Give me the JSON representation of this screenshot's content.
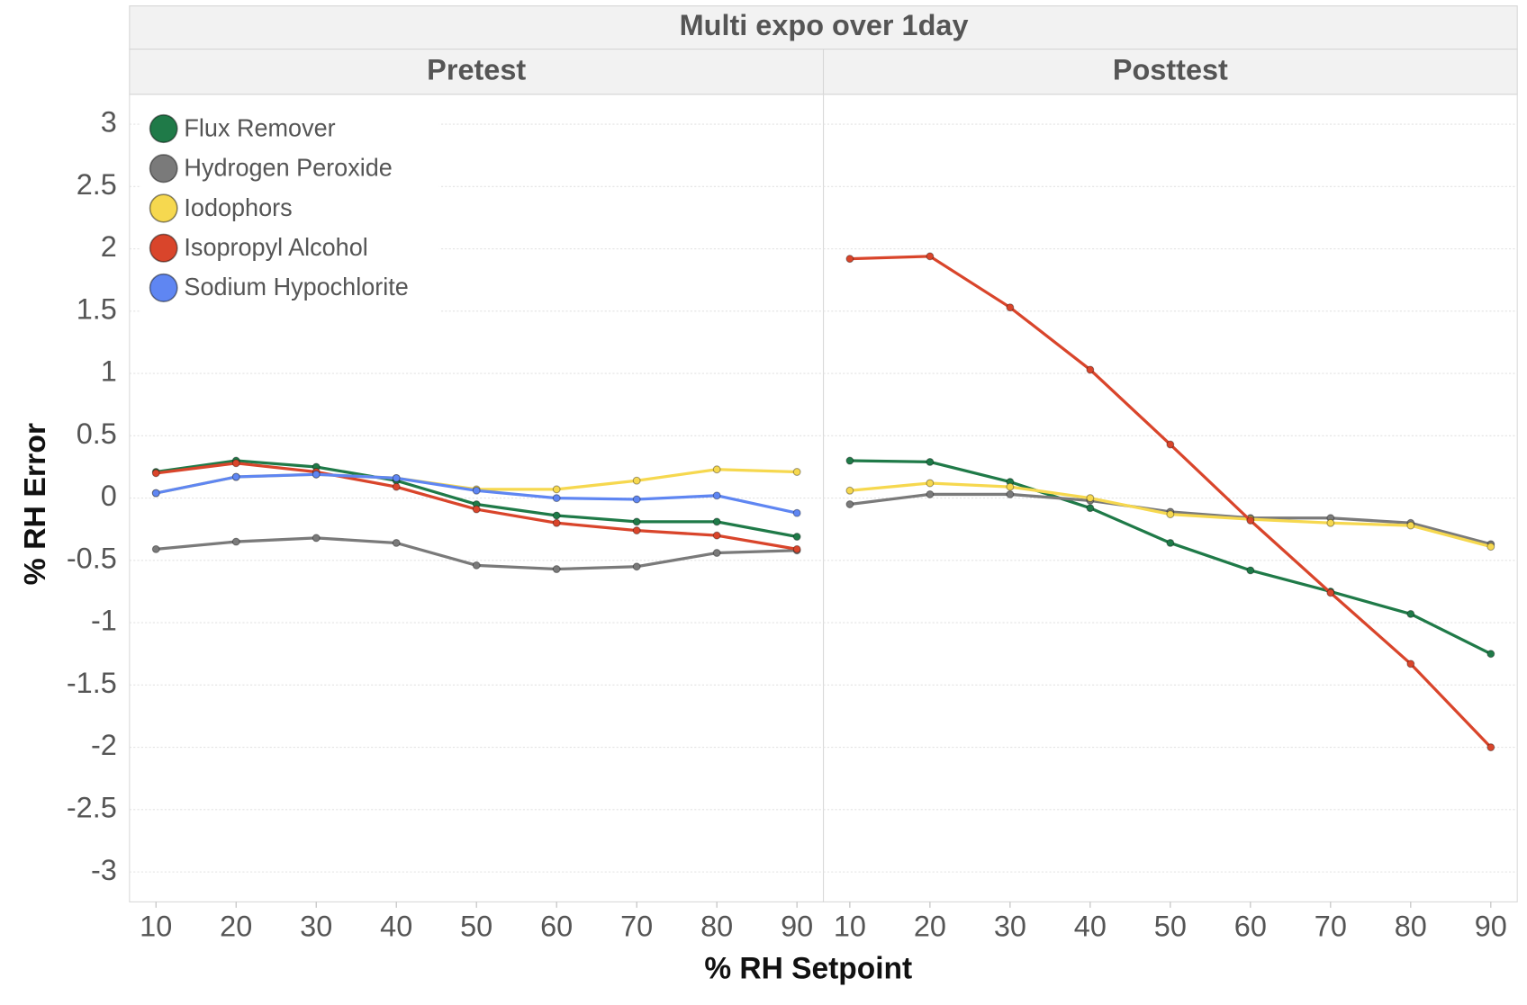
{
  "chart_data": {
    "type": "line",
    "title": "Multi expo over 1day",
    "x_label": "% RH Setpoint",
    "y_label": "% RH Error",
    "x": [
      10,
      20,
      30,
      40,
      50,
      60,
      70,
      80,
      90
    ],
    "xlim": [
      6.7,
      93.3
    ],
    "ylim": [
      -3.24,
      3.24
    ],
    "yticks": [
      -3,
      -2.5,
      -2,
      -1.5,
      -1,
      -0.5,
      0,
      0.5,
      1,
      1.5,
      2,
      2.5,
      3
    ],
    "grid": true,
    "legend": "top-left",
    "panels": [
      {
        "title": "Pretest",
        "series": [
          {
            "name": "Flux Remover",
            "color": "#1f7a48",
            "values": [
              0.21,
              0.3,
              0.25,
              0.14,
              -0.05,
              -0.14,
              -0.19,
              -0.19,
              -0.31
            ]
          },
          {
            "name": "Hydrogen Peroxide",
            "color": "#7a7a7a",
            "values": [
              -0.41,
              -0.35,
              -0.32,
              -0.36,
              -0.54,
              -0.57,
              -0.55,
              -0.44,
              -0.42
            ]
          },
          {
            "name": "Iodophors",
            "color": "#f6d84f",
            "values": [
              0.04,
              0.17,
              0.19,
              0.16,
              0.07,
              0.07,
              0.14,
              0.23,
              0.21
            ]
          },
          {
            "name": "Isopropyl Alcohol",
            "color": "#d9452b",
            "values": [
              0.2,
              0.28,
              0.21,
              0.09,
              -0.09,
              -0.2,
              -0.26,
              -0.3,
              -0.41
            ]
          },
          {
            "name": "Sodium Hypochlorite",
            "color": "#5f86f2",
            "values": [
              0.04,
              0.17,
              0.19,
              0.16,
              0.06,
              0.0,
              -0.01,
              0.02,
              -0.12
            ]
          }
        ]
      },
      {
        "title": "Posttest",
        "series": [
          {
            "name": "Flux Remover",
            "color": "#1f7a48",
            "values": [
              0.3,
              0.29,
              0.13,
              -0.08,
              -0.36,
              -0.58,
              -0.75,
              -0.93,
              -1.25
            ]
          },
          {
            "name": "Hydrogen Peroxide",
            "color": "#7a7a7a",
            "values": [
              -0.05,
              0.03,
              0.03,
              -0.02,
              -0.11,
              -0.16,
              -0.16,
              -0.2,
              -0.37
            ]
          },
          {
            "name": "Iodophors",
            "color": "#f6d84f",
            "values": [
              0.06,
              0.12,
              0.09,
              0.0,
              -0.13,
              -0.17,
              -0.2,
              -0.22,
              -0.39
            ]
          },
          {
            "name": "Isopropyl Alcohol",
            "color": "#d9452b",
            "values": [
              1.92,
              1.94,
              1.53,
              1.03,
              0.43,
              -0.18,
              -0.76,
              -1.33,
              -2.0
            ]
          }
        ]
      }
    ]
  }
}
